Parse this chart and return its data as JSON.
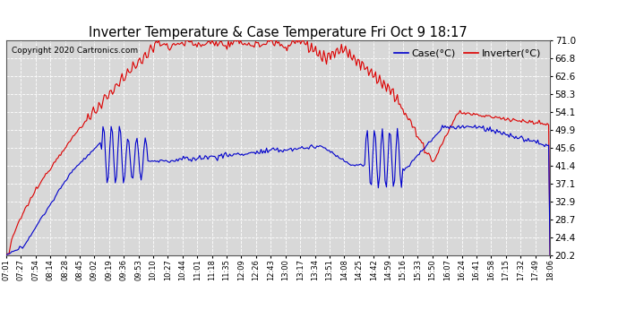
{
  "title": "Inverter Temperature & Case Temperature Fri Oct 9 18:17",
  "copyright": "Copyright 2020 Cartronics.com",
  "ylabel_right_ticks": [
    20.2,
    24.4,
    28.7,
    32.9,
    37.1,
    41.4,
    45.6,
    49.9,
    54.1,
    58.3,
    62.6,
    66.8,
    71.0
  ],
  "ylim": [
    20.2,
    71.0
  ],
  "x_labels": [
    "07:01",
    "07:27",
    "07:54",
    "08:14",
    "08:28",
    "08:45",
    "09:02",
    "09:19",
    "09:36",
    "09:53",
    "10:10",
    "10:27",
    "10:44",
    "11:01",
    "11:18",
    "11:35",
    "12:09",
    "12:26",
    "12:43",
    "13:00",
    "13:17",
    "13:34",
    "13:51",
    "14:08",
    "14:25",
    "14:42",
    "14:59",
    "15:16",
    "15:33",
    "15:50",
    "16:07",
    "16:24",
    "16:41",
    "16:58",
    "17:15",
    "17:32",
    "17:49",
    "18:06"
  ],
  "bg_color": "#ffffff",
  "plot_bg_color": "#d8d8d8",
  "grid_color": "#ffffff",
  "line_color_red": "#dd0000",
  "line_color_blue": "#0000cc",
  "title_color": "#000000",
  "copyright_color": "#000000",
  "legend_case_color": "#0000cc",
  "legend_inverter_color": "#dd0000"
}
